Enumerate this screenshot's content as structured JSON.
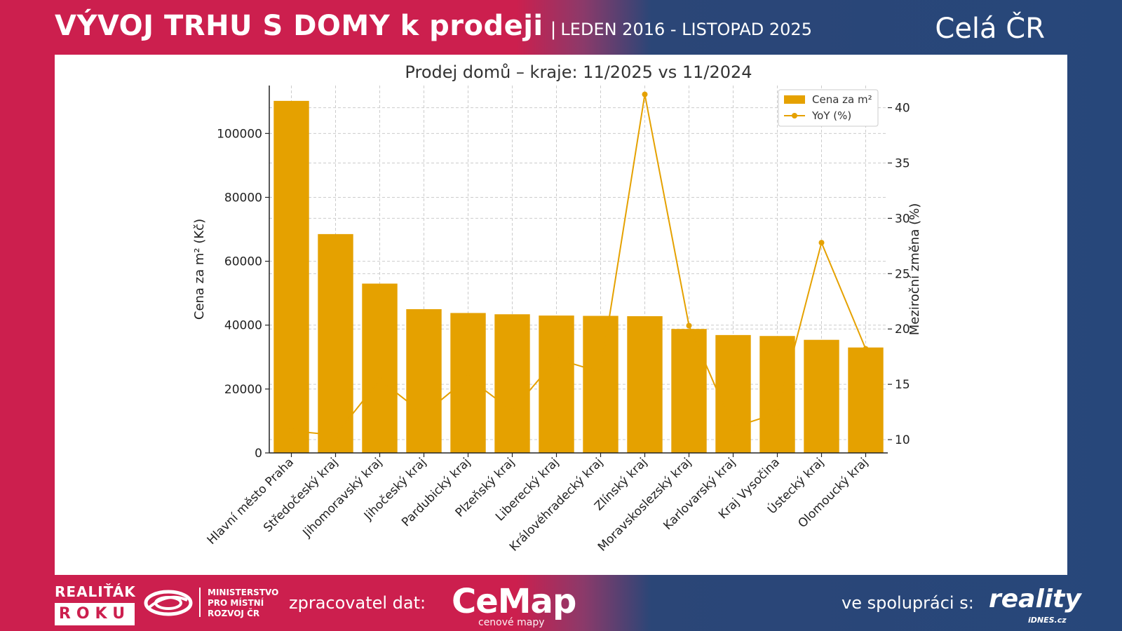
{
  "header": {
    "title": "VÝVOJ TRHU S DOMY k prodeji",
    "separator": "|",
    "period": "LEDEN 2016 - LISTOPAD 2025",
    "region": "Celá ČR"
  },
  "footer": {
    "realitak_top": "REALIŤÁK",
    "realitak_bottom": "ROKU",
    "ministry_lines": [
      "MINISTERSTVO",
      "PRO MÍSTNÍ",
      "ROZVOJ ČR"
    ],
    "processor_label": "zpracovatel dat:",
    "cemap_name": "CeMap",
    "cemap_sub": "cenové mapy",
    "partner_label": "ve spolupráci s:",
    "reality_name": "reality",
    "reality_sub": "iDNES.cz"
  },
  "colors": {
    "bar": "#e5a100",
    "line": "#e5a100",
    "red": "#cc1f4e",
    "navy": "#27477a"
  },
  "chart_data": {
    "type": "bar",
    "title": "Prodej domů – kraje: 11/2025 vs 11/2024",
    "ylabel": "Cena za m² (Kč)",
    "y2label": "Meziroční změna (%)",
    "categories": [
      "Hlavní město Praha",
      "Středočeský kraj",
      "Jihomoravský kraj",
      "Jihočeský kraj",
      "Pardubický kraj",
      "Plzeňský kraj",
      "Liberecký kraj",
      "Královéhradecký kraj",
      "Zlínský kraj",
      "Moravskoslezský kraj",
      "Karlovarský kraj",
      "Kraj Vysočina",
      "Ústecký kraj",
      "Olomoucký kraj"
    ],
    "series": [
      {
        "name": "Cena za m²",
        "type": "bar",
        "axis": "left",
        "values": [
          110200,
          68500,
          53000,
          45000,
          43800,
          43400,
          43000,
          42900,
          42800,
          38800,
          36900,
          36600,
          35400,
          33000
        ]
      },
      {
        "name": "YoY (%)",
        "type": "line",
        "axis": "right",
        "values": [
          10.8,
          10.4,
          15.4,
          12.3,
          15.6,
          12.6,
          17.3,
          16.1,
          41.2,
          20.3,
          11.1,
          12.4,
          27.8,
          18.2
        ]
      }
    ],
    "ylim": [
      0,
      115000
    ],
    "yticks": [
      0,
      20000,
      40000,
      60000,
      80000,
      100000
    ],
    "y2lim": [
      8.8,
      42.0
    ],
    "y2ticks": [
      10,
      15,
      20,
      25,
      30,
      35,
      40
    ],
    "grid": true,
    "legend_position": "top-right"
  }
}
